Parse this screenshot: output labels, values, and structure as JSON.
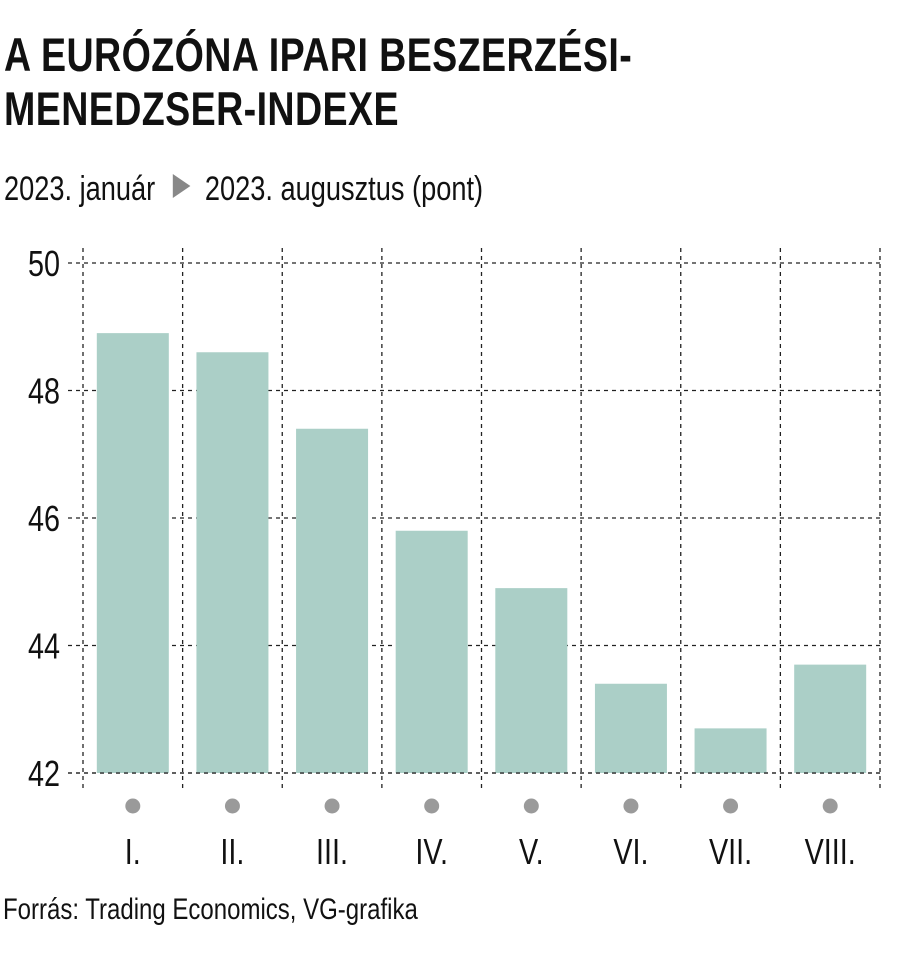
{
  "title": "A EURÓZÓNA IPARI BESZERZÉSI-MENEDZSER-INDEXE",
  "subtitle": {
    "from": "2023. január",
    "to": "2023. augusztus (pont)"
  },
  "source": "Forrás: Trading Economics, VG-grafika",
  "colors": {
    "bar": "#abcfc7",
    "dot": "#9a9a9a",
    "grid": "#222222"
  },
  "chart_data": {
    "type": "bar",
    "title": "A EURÓZÓNA IPARI BESZERZÉSI-MENEDZSER-INDEXE",
    "xlabel": "",
    "ylabel": "pont",
    "categories": [
      "I.",
      "II.",
      "III.",
      "IV.",
      "V.",
      "VI.",
      "VII.",
      "VIII."
    ],
    "values": [
      48.9,
      48.6,
      47.4,
      45.8,
      44.9,
      43.4,
      42.7,
      43.7
    ],
    "ylim": [
      42,
      50
    ],
    "yticks": [
      "42",
      "44",
      "46",
      "48",
      "50"
    ],
    "grid": true
  }
}
